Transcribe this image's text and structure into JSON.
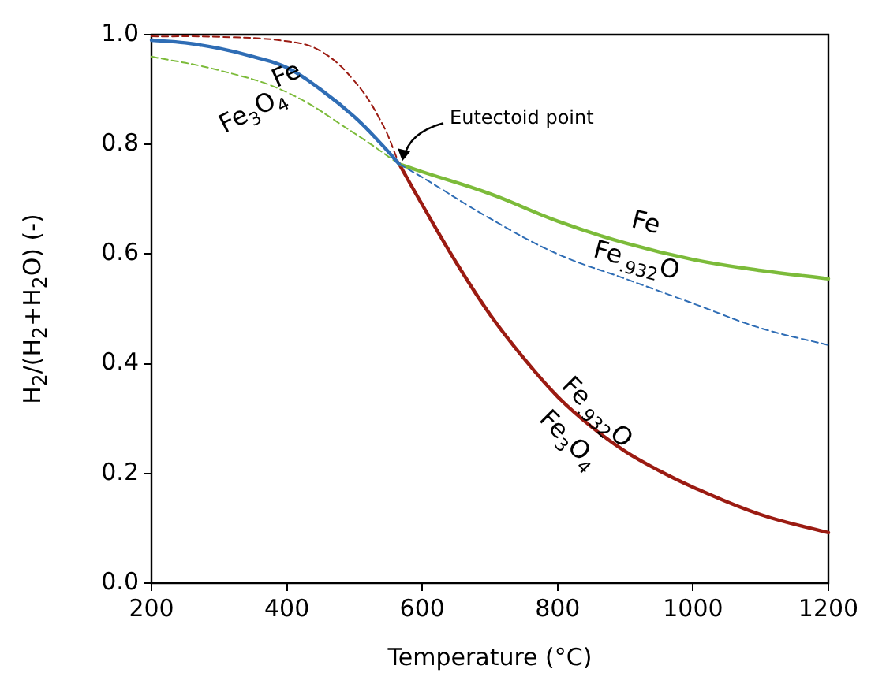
{
  "chart_data": {
    "type": "line",
    "xlabel": "Temperature (°C)",
    "ylabel": "H$_{2}$/(H$_{2}$+H$_{2}$O) (-)",
    "xlim": [
      200,
      1200
    ],
    "xticks": [
      200,
      400,
      600,
      800,
      1000,
      1200
    ],
    "ylim": [
      0,
      1
    ],
    "yticks": [
      {
        "value": 0,
        "label": "0.0"
      },
      {
        "value": 0.2,
        "label": "0.2"
      },
      {
        "value": 0.4,
        "label": "0.4"
      },
      {
        "value": 0.6,
        "label": "0.6"
      },
      {
        "value": 0.8,
        "label": "0.8"
      },
      {
        "value": 1,
        "label": "1.0"
      }
    ],
    "grid": false,
    "legend": false,
    "marker": "none",
    "series": [
      {
        "color": "#2f6db5",
        "line_style": "solid",
        "x": [
          200,
          250,
          300,
          350,
          400,
          450,
          500,
          540,
          566
        ],
        "values": [
          0.99,
          0.985,
          0.975,
          0.96,
          0.94,
          0.9,
          0.85,
          0.8,
          0.764
        ]
      },
      {
        "color": "#2f6db5",
        "line_style": "dashed",
        "x": [
          566,
          600,
          700,
          800,
          900,
          1000,
          1100,
          1200
        ],
        "values": [
          0.764,
          0.74,
          0.665,
          0.6,
          0.555,
          0.51,
          0.465,
          0.434
        ]
      },
      {
        "color": "#7cbb3a",
        "line_style": "dashed",
        "x": [
          200,
          300,
          400,
          500,
          566
        ],
        "values": [
          0.96,
          0.935,
          0.895,
          0.82,
          0.764
        ]
      },
      {
        "color": "#7cbb3a",
        "line_style": "solid",
        "x": [
          566,
          600,
          700,
          800,
          900,
          1000,
          1100,
          1200
        ],
        "values": [
          0.764,
          0.75,
          0.71,
          0.66,
          0.62,
          0.59,
          0.57,
          0.555
        ]
      },
      {
        "color": "#9b1b12",
        "line_style": "dashed",
        "x": [
          200,
          300,
          400,
          450,
          500,
          540,
          566
        ],
        "values": [
          0.997,
          0.996,
          0.988,
          0.97,
          0.915,
          0.84,
          0.764
        ]
      },
      {
        "color": "#9b1b12",
        "line_style": "solid",
        "x": [
          566,
          600,
          650,
          700,
          750,
          800,
          850,
          900,
          950,
          1000,
          1100,
          1200
        ],
        "values": [
          0.764,
          0.69,
          0.585,
          0.49,
          0.41,
          0.34,
          0.285,
          0.24,
          0.205,
          0.175,
          0.125,
          0.092
        ]
      }
    ],
    "annotations": [
      {
        "text": "Eutectoid point",
        "x": 566,
        "y": 0.764
      },
      "Fe",
      "Fe$_{3}$O$_{4}$",
      "Fe",
      "Fe$_{.932}$O",
      "Fe$_{.932}$O",
      "Fe$_{3}$O$_{4}$"
    ]
  }
}
